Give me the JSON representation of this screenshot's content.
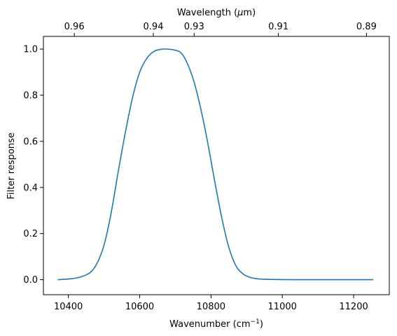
{
  "chart_data": {
    "type": "line",
    "xlabel": "Wavenumber (cm",
    "xlabel_sup": "−1",
    "xlabel_tail": ")",
    "ylabel": "Filter response",
    "top_xlabel": "Wavelength (",
    "top_xlabel_mu": "μ",
    "top_xlabel_tail": "m)",
    "xlim": [
      10330,
      11300
    ],
    "ylim": [
      -0.065,
      1.055
    ],
    "x_ticks": [
      10400,
      10600,
      10800,
      11000,
      11200
    ],
    "x_tick_labels": [
      "10400",
      "10600",
      "10800",
      "11000",
      "11200"
    ],
    "y_ticks": [
      0.0,
      0.2,
      0.4,
      0.6,
      0.8,
      1.0
    ],
    "y_tick_labels": [
      "0.0",
      "0.2",
      "0.4",
      "0.6",
      "0.8",
      "1.0"
    ],
    "top_ticks": [
      0.96,
      0.94,
      0.93,
      0.91,
      0.89
    ],
    "top_tick_labels": [
      "0.96",
      "0.94",
      "0.93",
      "0.91",
      "0.89"
    ],
    "grid": false,
    "series": [
      {
        "color": "#1f77b4",
        "x": [
          10370,
          10400,
          10430,
          10460,
          10480,
          10500,
          10520,
          10540,
          10560,
          10580,
          10600,
          10620,
          10640,
          10660,
          10680,
          10700,
          10715,
          10730,
          10750,
          10770,
          10790,
          10810,
          10830,
          10850,
          10870,
          10890,
          10910,
          10930,
          10960,
          11000,
          11050,
          11100,
          11150,
          11200,
          11255
        ],
        "y": [
          0.0,
          0.003,
          0.01,
          0.03,
          0.07,
          0.15,
          0.29,
          0.47,
          0.64,
          0.79,
          0.9,
          0.96,
          0.99,
          0.999,
          1.0,
          0.995,
          0.985,
          0.95,
          0.87,
          0.75,
          0.6,
          0.43,
          0.27,
          0.14,
          0.06,
          0.025,
          0.01,
          0.004,
          0.0015,
          0.0005,
          0.0,
          0.0,
          0.0,
          0.0,
          0.0
        ]
      }
    ]
  }
}
